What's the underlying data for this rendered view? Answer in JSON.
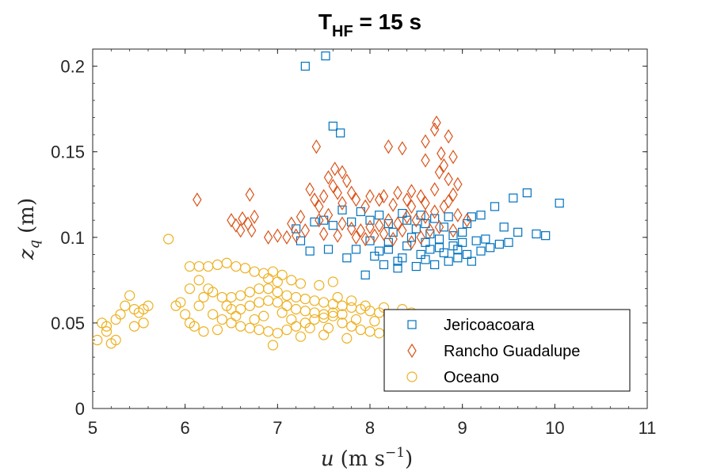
{
  "chart_data": {
    "type": "scatter",
    "title": {
      "main": "T",
      "subscript": "HF",
      "rest": " = 15 s"
    },
    "xlabel": {
      "var": "u",
      "units": "(m s",
      "exp": "−1",
      "close": ")"
    },
    "ylabel": {
      "var": "z",
      "subscript": "q",
      "units": "(m)"
    },
    "xlim": [
      5,
      11
    ],
    "ylim": [
      0,
      0.21
    ],
    "xticks": [
      "5",
      "6",
      "7",
      "8",
      "9",
      "10",
      "11"
    ],
    "yticks": [
      "0",
      "0.05",
      "0.1",
      "0.15",
      "0.2"
    ],
    "ytick_values": [
      0,
      0.05,
      0.1,
      0.15,
      0.2
    ],
    "xtick_values": [
      5,
      6,
      7,
      8,
      9,
      10,
      11
    ],
    "grid": false,
    "legend_position": "bottom-right",
    "series": [
      {
        "name": "Jericoacoara",
        "marker": "square",
        "color": "#0072BD",
        "points": [
          [
            7.3,
            0.2
          ],
          [
            7.52,
            0.206
          ],
          [
            7.6,
            0.165
          ],
          [
            7.68,
            0.161
          ],
          [
            9.7,
            0.126
          ],
          [
            9.55,
            0.123
          ],
          [
            10.05,
            0.12
          ],
          [
            9.35,
            0.118
          ],
          [
            9.2,
            0.113
          ],
          [
            9.1,
            0.112
          ],
          [
            9.45,
            0.106
          ],
          [
            9.6,
            0.103
          ],
          [
            9.8,
            0.102
          ],
          [
            9.9,
            0.101
          ],
          [
            9.5,
            0.097
          ],
          [
            9.3,
            0.094
          ],
          [
            9.2,
            0.092
          ],
          [
            9.05,
            0.09
          ],
          [
            8.95,
            0.088
          ],
          [
            8.85,
            0.086
          ],
          [
            8.7,
            0.084
          ],
          [
            8.5,
            0.083
          ],
          [
            8.3,
            0.082
          ],
          [
            8.15,
            0.084
          ],
          [
            8.05,
            0.089
          ],
          [
            8.2,
            0.093
          ],
          [
            8.4,
            0.095
          ],
          [
            8.6,
            0.097
          ],
          [
            8.75,
            0.099
          ],
          [
            8.9,
            0.101
          ],
          [
            9.0,
            0.103
          ],
          [
            8.8,
            0.106
          ],
          [
            8.6,
            0.108
          ],
          [
            8.4,
            0.11
          ],
          [
            8.2,
            0.108
          ],
          [
            8.0,
            0.11
          ],
          [
            7.8,
            0.109
          ],
          [
            7.6,
            0.107
          ],
          [
            7.4,
            0.109
          ],
          [
            7.2,
            0.105
          ],
          [
            7.25,
            0.098
          ],
          [
            7.35,
            0.092
          ],
          [
            7.55,
            0.093
          ],
          [
            7.75,
            0.088
          ],
          [
            7.95,
            0.078
          ],
          [
            8.1,
            0.092
          ],
          [
            8.35,
            0.088
          ],
          [
            8.55,
            0.09
          ],
          [
            8.45,
            0.1
          ],
          [
            8.25,
            0.103
          ],
          [
            8.65,
            0.093
          ],
          [
            8.8,
            0.091
          ],
          [
            9.0,
            0.097
          ],
          [
            9.15,
            0.098
          ],
          [
            8.9,
            0.095
          ],
          [
            8.7,
            0.111
          ],
          [
            8.55,
            0.113
          ],
          [
            8.35,
            0.114
          ],
          [
            8.1,
            0.113
          ],
          [
            7.9,
            0.115
          ],
          [
            7.7,
            0.116
          ],
          [
            8.85,
            0.112
          ],
          [
            9.05,
            0.108
          ],
          [
            9.25,
            0.099
          ],
          [
            9.4,
            0.096
          ],
          [
            7.5,
            0.11
          ],
          [
            8.0,
            0.098
          ],
          [
            8.3,
            0.086
          ],
          [
            8.6,
            0.087
          ],
          [
            8.75,
            0.094
          ],
          [
            8.5,
            0.105
          ],
          [
            8.2,
            0.097
          ],
          [
            9.1,
            0.086
          ],
          [
            8.95,
            0.093
          ],
          [
            8.65,
            0.102
          ],
          [
            7.85,
            0.093
          ]
        ]
      },
      {
        "name": "Rancho Guadalupe",
        "marker": "diamond",
        "color": "#D95319",
        "points": [
          [
            8.72,
            0.167
          ],
          [
            8.7,
            0.163
          ],
          [
            8.85,
            0.159
          ],
          [
            8.6,
            0.156
          ],
          [
            8.2,
            0.153
          ],
          [
            8.35,
            0.152
          ],
          [
            7.42,
            0.153
          ],
          [
            8.77,
            0.149
          ],
          [
            8.9,
            0.147
          ],
          [
            8.6,
            0.145
          ],
          [
            8.8,
            0.142
          ],
          [
            8.75,
            0.138
          ],
          [
            8.85,
            0.134
          ],
          [
            8.95,
            0.131
          ],
          [
            8.7,
            0.128
          ],
          [
            8.9,
            0.125
          ],
          [
            8.85,
            0.121
          ],
          [
            8.8,
            0.118
          ],
          [
            8.7,
            0.115
          ],
          [
            8.6,
            0.112
          ],
          [
            8.5,
            0.11
          ],
          [
            8.4,
            0.112
          ],
          [
            8.3,
            0.108
          ],
          [
            8.2,
            0.11
          ],
          [
            8.1,
            0.107
          ],
          [
            8.0,
            0.106
          ],
          [
            7.9,
            0.104
          ],
          [
            7.8,
            0.105
          ],
          [
            7.7,
            0.108
          ],
          [
            7.6,
            0.13
          ],
          [
            7.55,
            0.135
          ],
          [
            7.65,
            0.126
          ],
          [
            7.5,
            0.124
          ],
          [
            7.45,
            0.118
          ],
          [
            7.4,
            0.122
          ],
          [
            7.35,
            0.128
          ],
          [
            7.7,
            0.138
          ],
          [
            7.62,
            0.14
          ],
          [
            7.75,
            0.133
          ],
          [
            7.85,
            0.122
          ],
          [
            7.95,
            0.118
          ],
          [
            8.1,
            0.122
          ],
          [
            8.25,
            0.119
          ],
          [
            8.45,
            0.118
          ],
          [
            8.55,
            0.124
          ],
          [
            8.45,
            0.127
          ],
          [
            8.3,
            0.126
          ],
          [
            8.15,
            0.124
          ],
          [
            8.0,
            0.124
          ],
          [
            7.3,
            0.104
          ],
          [
            7.2,
            0.101
          ],
          [
            7.1,
            0.1
          ],
          [
            7.0,
            0.101
          ],
          [
            6.9,
            0.1
          ],
          [
            7.25,
            0.112
          ],
          [
            7.15,
            0.108
          ],
          [
            6.13,
            0.122
          ],
          [
            6.7,
            0.125
          ],
          [
            6.5,
            0.11
          ],
          [
            6.55,
            0.107
          ],
          [
            6.6,
            0.104
          ],
          [
            6.75,
            0.112
          ],
          [
            6.68,
            0.108
          ],
          [
            6.72,
            0.104
          ],
          [
            6.62,
            0.111
          ],
          [
            8.6,
            0.12
          ],
          [
            8.65,
            0.104
          ],
          [
            8.55,
            0.1
          ],
          [
            8.45,
            0.097
          ],
          [
            8.25,
            0.099
          ],
          [
            8.05,
            0.101
          ],
          [
            7.85,
            0.1
          ],
          [
            7.65,
            0.101
          ],
          [
            7.5,
            0.102
          ],
          [
            7.45,
            0.11
          ],
          [
            7.55,
            0.113
          ],
          [
            8.35,
            0.104
          ],
          [
            8.15,
            0.102
          ],
          [
            7.95,
            0.099
          ],
          [
            8.75,
            0.106
          ],
          [
            7.8,
            0.126
          ],
          [
            7.7,
            0.12
          ],
          [
            8.4,
            0.122
          ],
          [
            8.95,
            0.113
          ],
          [
            9.05,
            0.11
          ],
          [
            8.9,
            0.104
          ]
        ]
      },
      {
        "name": "Oceano",
        "marker": "circle",
        "color": "#EDB120",
        "points": [
          [
            5.82,
            0.099
          ],
          [
            6.05,
            0.083
          ],
          [
            6.15,
            0.083
          ],
          [
            6.25,
            0.083
          ],
          [
            6.35,
            0.084
          ],
          [
            6.45,
            0.085
          ],
          [
            6.55,
            0.083
          ],
          [
            6.65,
            0.082
          ],
          [
            6.75,
            0.08
          ],
          [
            6.85,
            0.079
          ],
          [
            6.95,
            0.08
          ],
          [
            7.05,
            0.078
          ],
          [
            7.15,
            0.075
          ],
          [
            7.25,
            0.073
          ],
          [
            7.45,
            0.072
          ],
          [
            7.6,
            0.074
          ],
          [
            5.1,
            0.05
          ],
          [
            5.15,
            0.045
          ],
          [
            5.05,
            0.04
          ],
          [
            5.25,
            0.052
          ],
          [
            5.3,
            0.055
          ],
          [
            5.35,
            0.06
          ],
          [
            5.4,
            0.066
          ],
          [
            5.45,
            0.058
          ],
          [
            5.5,
            0.056
          ],
          [
            5.55,
            0.058
          ],
          [
            5.6,
            0.06
          ],
          [
            5.25,
            0.04
          ],
          [
            5.2,
            0.038
          ],
          [
            5.15,
            0.048
          ],
          [
            5.45,
            0.048
          ],
          [
            5.55,
            0.05
          ],
          [
            5.9,
            0.06
          ],
          [
            5.95,
            0.062
          ],
          [
            6.0,
            0.055
          ],
          [
            6.05,
            0.05
          ],
          [
            6.1,
            0.048
          ],
          [
            6.15,
            0.06
          ],
          [
            6.2,
            0.065
          ],
          [
            6.25,
            0.07
          ],
          [
            6.3,
            0.068
          ],
          [
            6.4,
            0.065
          ],
          [
            6.5,
            0.065
          ],
          [
            6.6,
            0.066
          ],
          [
            6.7,
            0.068
          ],
          [
            6.8,
            0.07
          ],
          [
            6.9,
            0.07
          ],
          [
            7.0,
            0.068
          ],
          [
            7.1,
            0.066
          ],
          [
            7.2,
            0.065
          ],
          [
            7.3,
            0.064
          ],
          [
            7.4,
            0.063
          ],
          [
            7.5,
            0.062
          ],
          [
            7.6,
            0.061
          ],
          [
            7.7,
            0.06
          ],
          [
            7.8,
            0.059
          ],
          [
            7.9,
            0.058
          ],
          [
            8.0,
            0.057
          ],
          [
            8.1,
            0.056
          ],
          [
            8.2,
            0.055
          ],
          [
            8.3,
            0.054
          ],
          [
            8.4,
            0.053
          ],
          [
            8.5,
            0.052
          ],
          [
            8.6,
            0.051
          ],
          [
            6.3,
            0.055
          ],
          [
            6.4,
            0.052
          ],
          [
            6.5,
            0.05
          ],
          [
            6.6,
            0.048
          ],
          [
            6.7,
            0.047
          ],
          [
            6.8,
            0.046
          ],
          [
            6.9,
            0.045
          ],
          [
            7.0,
            0.044
          ],
          [
            7.1,
            0.046
          ],
          [
            7.2,
            0.048
          ],
          [
            7.3,
            0.05
          ],
          [
            7.4,
            0.052
          ],
          [
            7.5,
            0.053
          ],
          [
            7.6,
            0.054
          ],
          [
            7.7,
            0.05
          ],
          [
            7.8,
            0.048
          ],
          [
            7.9,
            0.046
          ],
          [
            8.0,
            0.045
          ],
          [
            8.1,
            0.044
          ],
          [
            8.2,
            0.045
          ],
          [
            6.6,
            0.058
          ],
          [
            6.7,
            0.06
          ],
          [
            6.8,
            0.062
          ],
          [
            6.9,
            0.063
          ],
          [
            7.0,
            0.062
          ],
          [
            7.1,
            0.06
          ],
          [
            7.2,
            0.058
          ],
          [
            7.3,
            0.057
          ],
          [
            7.4,
            0.056
          ],
          [
            7.5,
            0.055
          ],
          [
            7.6,
            0.056
          ],
          [
            7.7,
            0.055
          ],
          [
            6.95,
            0.037
          ],
          [
            7.25,
            0.042
          ],
          [
            7.5,
            0.043
          ],
          [
            7.75,
            0.041
          ],
          [
            6.2,
            0.045
          ],
          [
            6.35,
            0.046
          ],
          [
            6.5,
            0.058
          ],
          [
            6.75,
            0.052
          ],
          [
            6.85,
            0.054
          ],
          [
            7.05,
            0.056
          ],
          [
            7.15,
            0.052
          ],
          [
            7.35,
            0.047
          ],
          [
            7.55,
            0.047
          ],
          [
            7.85,
            0.052
          ],
          [
            8.05,
            0.051
          ],
          [
            8.25,
            0.05
          ],
          [
            6.05,
            0.07
          ],
          [
            6.15,
            0.075
          ],
          [
            6.9,
            0.076
          ],
          [
            7.0,
            0.074
          ],
          [
            6.45,
            0.06
          ],
          [
            6.55,
            0.054
          ],
          [
            7.65,
            0.065
          ],
          [
            7.8,
            0.063
          ],
          [
            7.95,
            0.06
          ],
          [
            8.15,
            0.059
          ],
          [
            8.35,
            0.058
          ],
          [
            8.45,
            0.056
          ],
          [
            8.55,
            0.054
          ],
          [
            8.65,
            0.053
          ],
          [
            8.75,
            0.052
          ]
        ]
      }
    ]
  }
}
